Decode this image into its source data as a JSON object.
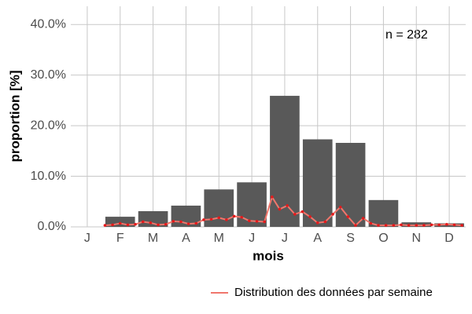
{
  "chart_data": {
    "type": "bar",
    "y_label": "proportion [%]",
    "x_label": "mois",
    "annotation": "n = 282",
    "categories": [
      "J",
      "F",
      "M",
      "A",
      "M",
      "J",
      "J",
      "A",
      "S",
      "O",
      "N",
      "D"
    ],
    "values": [
      0,
      2.0,
      3.1,
      4.2,
      7.4,
      8.8,
      25.9,
      17.3,
      16.6,
      5.3,
      0.9,
      0.7
    ],
    "color": "#595959",
    "ylim": [
      0,
      43.6
    ],
    "yticks": [
      {
        "value": 0,
        "label": "0.0%"
      },
      {
        "value": 10,
        "label": "10.0%"
      },
      {
        "value": 20,
        "label": "20.0%"
      },
      {
        "value": 30,
        "label": "30.0%"
      },
      {
        "value": 40,
        "label": "40.0%"
      }
    ],
    "grid": true,
    "weekly": {
      "type": "line",
      "name": "Distribution des données par semaine",
      "color": "#f0766c",
      "point_color": "#e41a1c",
      "xlim": [
        0.5,
        52.5
      ],
      "x": [
        5,
        6,
        7,
        8,
        9,
        10,
        11,
        12,
        13,
        14,
        15,
        16,
        17,
        18,
        19,
        20,
        21,
        22,
        23,
        24,
        25,
        26,
        27,
        28,
        29,
        30,
        31,
        32,
        33,
        34,
        35,
        36,
        37,
        38,
        39,
        40,
        41,
        42,
        43,
        44,
        45,
        46,
        47,
        48,
        49,
        50,
        51,
        52
      ],
      "values": [
        0.3,
        0.4,
        0.7,
        0.4,
        0.5,
        1.0,
        0.8,
        0.4,
        0.5,
        1.1,
        1.0,
        0.6,
        0.7,
        1.4,
        1.5,
        1.8,
        1.4,
        2.1,
        1.9,
        1.2,
        1.1,
        1.0,
        5.9,
        3.5,
        4.2,
        2.5,
        3.0,
        2.0,
        0.8,
        1.0,
        2.5,
        3.9,
        2.0,
        0.3,
        1.7,
        0.7,
        0.3,
        0.3,
        0.3,
        0.4,
        0.3,
        0.3,
        0.3,
        0.4,
        0.4,
        0.5,
        0.4,
        0.3
      ]
    },
    "legend": "bottom-right"
  }
}
